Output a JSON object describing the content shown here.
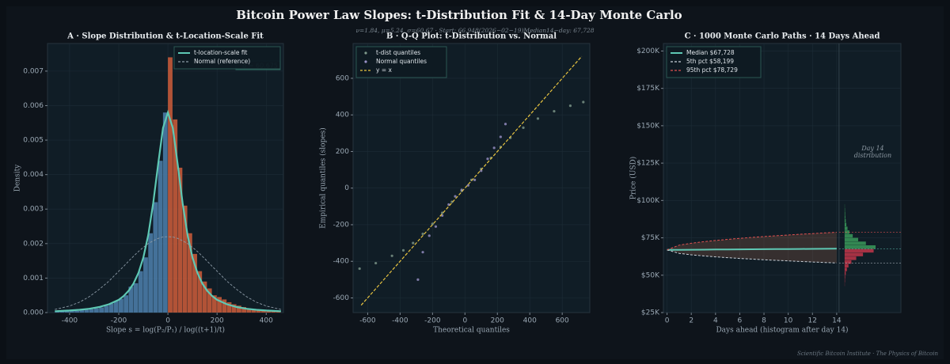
{
  "title": "Bitcoin Power Law Slopes: t-Distribution Fit & 14-Day Monte Carlo",
  "subtitle": "ν=1.84, μ=5.24, σ=60.67  ·  Start: 66,948(2026−02−19)Median14−day: 67,728",
  "footer": "Scientific Bitcoin Institute  ·  The Physics of Bitcoin",
  "chart_data": [
    {
      "type": "histogram",
      "title": "A  ·  Slope Distribution & t-Location-Scale Fit",
      "xlabel": "Slope  s = log(P₂/P₁) / log((t+1)/t)",
      "ylabel": "Density",
      "xlim": [
        -490,
        470
      ],
      "ylim": [
        0,
        0.0078
      ],
      "xticks": [
        -400,
        -200,
        0,
        200,
        400
      ],
      "yticks": [
        {
          "value": 0,
          "label": "0.000"
        },
        0.001,
        0.002,
        0.003,
        0.004,
        0.005,
        0.006,
        0.007
      ],
      "bins": [
        -460,
        -440,
        -420,
        -400,
        -380,
        -360,
        -340,
        -320,
        -300,
        -280,
        -260,
        -240,
        -220,
        -200,
        -180,
        -160,
        -140,
        -120,
        -100,
        -80,
        -60,
        -40,
        -20,
        0,
        20,
        40,
        60,
        80,
        100,
        120,
        140,
        160,
        180,
        200,
        220,
        240,
        260,
        280,
        300,
        320,
        340,
        360,
        380,
        400,
        420,
        440,
        460
      ],
      "counts": [
        3e-05,
        4e-05,
        4e-05,
        5e-05,
        5e-05,
        7e-05,
        8e-05,
        0.0001,
        0.00012,
        0.00015,
        0.0002,
        0.00026,
        0.00033,
        0.0004,
        0.0005,
        0.00075,
        0.00085,
        0.0012,
        0.0016,
        0.0023,
        0.0032,
        0.0044,
        0.0058,
        0.0074,
        0.0056,
        0.0042,
        0.0031,
        0.0023,
        0.0017,
        0.0012,
        0.0009,
        0.0007,
        0.0005,
        0.00045,
        0.00038,
        0.0003,
        0.00024,
        0.0002,
        0.00016,
        0.00012,
        0.0001,
        8e-05,
        6e-05,
        5e-05,
        4e-05,
        3e-05
      ],
      "bar_colors": {
        "negative": "#4a7ba6",
        "positive": "#c45a3a"
      },
      "legend": "upper right",
      "series": [
        {
          "name": "t-location-scale fit",
          "color": "#5ec8b4",
          "dash": false,
          "x": [
            -460,
            -400,
            -360,
            -320,
            -280,
            -240,
            -200,
            -180,
            -160,
            -140,
            -120,
            -100,
            -80,
            -60,
            -40,
            -20,
            0,
            20,
            40,
            60,
            80,
            100,
            120,
            140,
            160,
            180,
            200,
            240,
            280,
            320,
            360,
            400,
            460
          ],
          "values": [
            4e-05,
            6e-05,
            8e-05,
            0.00011,
            0.00016,
            0.00024,
            0.00037,
            0.00048,
            0.00063,
            0.00084,
            0.00115,
            0.0016,
            0.00225,
            0.00317,
            0.00429,
            0.00535,
            0.0058,
            0.00535,
            0.00429,
            0.00317,
            0.00225,
            0.0016,
            0.00115,
            0.00084,
            0.00063,
            0.00048,
            0.00037,
            0.00024,
            0.00016,
            0.00011,
            8e-05,
            6e-05,
            4e-05
          ]
        },
        {
          "name": "Normal (reference)",
          "color": "#8c9aa6",
          "dash": true,
          "x": [
            -460,
            -400,
            -360,
            -320,
            -280,
            -240,
            -200,
            -180,
            -160,
            -140,
            -120,
            -100,
            -80,
            -60,
            -40,
            -20,
            0,
            20,
            40,
            60,
            80,
            100,
            120,
            140,
            160,
            180,
            200,
            240,
            280,
            320,
            360,
            400,
            460
          ],
          "values": [
            9e-05,
            0.00019,
            0.0003,
            0.00046,
            0.00067,
            0.00091,
            0.0012,
            0.00134,
            0.00149,
            0.00163,
            0.00177,
            0.00189,
            0.002,
            0.00208,
            0.00215,
            0.00219,
            0.0022,
            0.00219,
            0.00215,
            0.00208,
            0.002,
            0.00189,
            0.00177,
            0.00163,
            0.00149,
            0.00134,
            0.0012,
            0.00091,
            0.00067,
            0.00046,
            0.0003,
            0.00019,
            9e-05
          ]
        }
      ],
      "annotation": "σ = 60.675"
    },
    {
      "type": "scatter",
      "title": "B  ·  Q-Q Plot:  t-Distribution vs. Normal",
      "xlabel": "Theoretical quantiles",
      "ylabel": "Empirical quantiles (slopes)",
      "xlim": [
        -690,
        770
      ],
      "ylim": [
        -680,
        790
      ],
      "xticks": [
        -600,
        -400,
        -200,
        0,
        200,
        400,
        600
      ],
      "yticks": [
        -600,
        -400,
        -200,
        0,
        200,
        400,
        600
      ],
      "legend": "upper left",
      "series": [
        {
          "name": "t-dist quantiles",
          "color": "#7f9a8c",
          "style": "dots",
          "x": [
            -650,
            -550,
            -450,
            -380,
            -320,
            -260,
            -200,
            -140,
            -80,
            -20,
            40,
            100,
            160,
            220,
            280,
            360,
            450,
            550,
            650,
            730
          ],
          "values": [
            -440,
            -410,
            -370,
            -340,
            -300,
            -250,
            -195,
            -135,
            -75,
            -15,
            45,
            105,
            165,
            225,
            275,
            330,
            380,
            420,
            450,
            470
          ]
        },
        {
          "name": "Normal quantiles",
          "color": "#9a92c8",
          "style": "dots",
          "x": [
            -290,
            -260,
            -220,
            -180,
            -140,
            -100,
            -60,
            -20,
            20,
            60,
            100,
            140,
            180,
            220,
            250
          ],
          "values": [
            -500,
            -350,
            -260,
            -210,
            -150,
            -90,
            -45,
            -10,
            15,
            45,
            95,
            160,
            220,
            280,
            350
          ]
        },
        {
          "name": "y = x",
          "color": "#e8c440",
          "style": "line",
          "x": [
            -640,
            720
          ],
          "values": [
            -640,
            720
          ]
        }
      ]
    },
    {
      "type": "line",
      "title": "C  ·  1000 Monte Carlo Paths  ·  14 Days Ahead",
      "xlabel": "Days ahead  (histogram after day 14)",
      "ylabel": "Price (USD)",
      "xlim": [
        -0.3,
        19.3
      ],
      "ylim": [
        25000,
        205000
      ],
      "xticks": [
        0,
        2,
        4,
        6,
        8,
        10,
        12,
        14
      ],
      "yticks": [
        {
          "value": 25000,
          "label": "$25K"
        },
        {
          "value": 50000,
          "label": "$50K"
        },
        {
          "value": 75000,
          "label": "$75K"
        },
        {
          "value": 100000,
          "label": "$100K"
        },
        {
          "value": 125000,
          "label": "$125K"
        },
        {
          "value": 150000,
          "label": "$150K"
        },
        {
          "value": 175000,
          "label": "$175K"
        },
        {
          "value": 200000,
          "label": "$200K"
        }
      ],
      "legend": "upper left",
      "x": [
        0,
        1,
        2,
        3,
        4,
        5,
        6,
        7,
        8,
        9,
        10,
        11,
        12,
        13,
        14
      ],
      "series": [
        {
          "name": "Median  $67,728",
          "color": "#5ec8b4",
          "dash": false,
          "values": [
            66948,
            67000,
            67060,
            67110,
            67170,
            67220,
            67280,
            67330,
            67390,
            67440,
            67500,
            67560,
            67610,
            67670,
            67728
          ]
        },
        {
          "name": "5th pct  $58,199",
          "color": "#c8d0d8",
          "dash": true,
          "values": [
            66948,
            64611,
            63641,
            62898,
            62271,
            61719,
            61220,
            60762,
            60335,
            59933,
            59554,
            59193,
            58848,
            58517,
            58199
          ]
        },
        {
          "name": "95th pct  $78,729",
          "color": "#e05050",
          "dash": true,
          "values": [
            66948,
            70096,
            71401,
            72402,
            73251,
            73993,
            74665,
            75277,
            75854,
            76396,
            76903,
            77386,
            77857,
            78305,
            78729
          ]
        }
      ],
      "histogram": {
        "bins": [
          42500,
          45000,
          47500,
          50000,
          52500,
          55000,
          57500,
          60000,
          62500,
          65000,
          67500,
          70000,
          72500,
          75000,
          77500,
          80000,
          82500,
          85000,
          87500,
          90000,
          92500,
          95000,
          97500
        ],
        "counts": [
          1,
          2,
          3,
          6,
          12,
          20,
          35,
          60,
          95,
          150,
          160,
          110,
          70,
          42,
          25,
          15,
          9,
          6,
          4,
          3,
          2,
          1
        ],
        "below_color": "#c0364a",
        "above_color": "#3a9a5a"
      },
      "annotation": [
        "Day 14",
        "distribution"
      ]
    }
  ]
}
